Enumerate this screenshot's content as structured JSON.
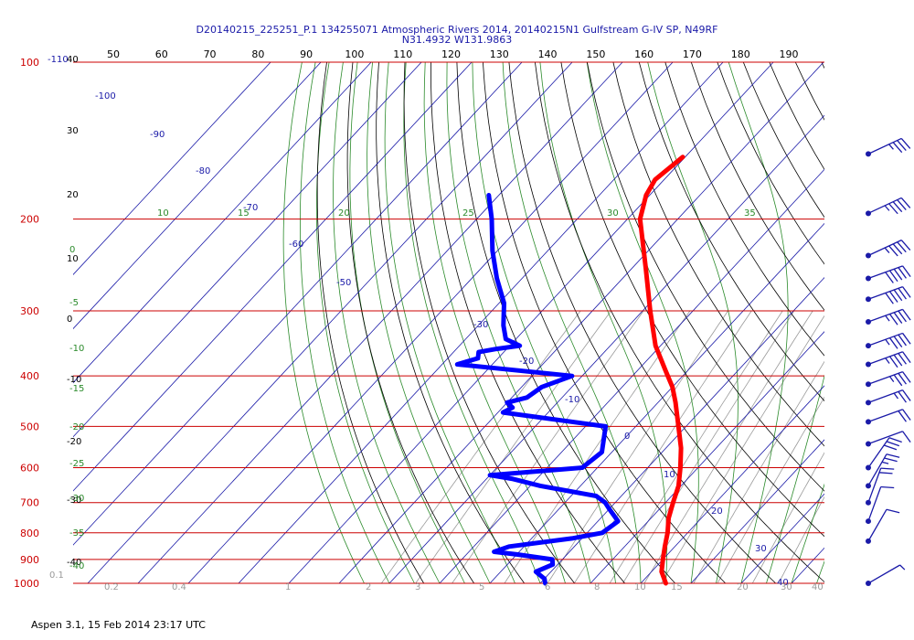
{
  "title_line1": "D20140215_225251_P.1 134255071 Atmospheric Rivers 2014, 20140215N1 Gulfstream G-IV SP, N49RF",
  "title_line2": "N31.4932 W131.9863",
  "footer": "Aspen 3.1, 15 Feb 2014  23:17 UTC",
  "colors": {
    "isobar": "#cc0000",
    "isotherm": "#1a1aa8",
    "dry_adiabat": "#000000",
    "moist_adiabat": "#2a8a2a",
    "mixing_ratio": "#9a9a9a",
    "temperature": "#ff0000",
    "dewpoint": "#0000ff",
    "wind_barb": "#1a1aa8"
  },
  "chart_data": {
    "type": "skew-t",
    "pressure_ticks": [
      "100",
      "200",
      "300",
      "400",
      "500",
      "600",
      "700",
      "800",
      "900",
      "1000"
    ],
    "theta_top_labels": [
      "50",
      "60",
      "70",
      "80",
      "90",
      "100",
      "110",
      "120",
      "130",
      "140",
      "150",
      "160",
      "170",
      "180",
      "190"
    ],
    "temp_left_labels": [
      "-110",
      "40",
      "30",
      "20",
      "10",
      "0",
      "-10",
      "-20",
      "-30",
      "-40"
    ],
    "isotherm_labels": [
      "-100",
      "-90",
      "-80",
      "-70",
      "-60",
      "-50",
      "-30",
      "-20",
      "-10",
      "0",
      "10",
      "20",
      "30",
      "40"
    ],
    "theta_e_labels": [
      "10",
      "15",
      "20",
      "25",
      "30",
      "35"
    ],
    "moist_left_labels": [
      "0",
      "-5",
      "-10",
      "-15",
      "-20",
      "-25",
      "-30",
      "-35",
      "-40"
    ],
    "mixing_ratio_labels": [
      "0.1",
      "0.2",
      "0.4",
      "1",
      "2",
      "3",
      "5",
      "6",
      "8",
      "10",
      "15",
      "20",
      "30",
      "40"
    ],
    "temperature": {
      "name": "Temperature",
      "p": [
        152,
        168,
        180,
        200,
        250,
        300,
        350,
        390,
        420,
        450,
        500,
        550,
        600,
        650,
        700,
        750,
        800,
        850,
        900,
        950,
        1000
      ],
      "t": [
        -60.5,
        -61.8,
        -60.7,
        -57.5,
        -47,
        -38.5,
        -31,
        -24.5,
        -20,
        -16.5,
        -11.5,
        -7,
        -3.5,
        -0.5,
        1.5,
        3.5,
        6,
        8,
        10,
        12,
        15
      ]
    },
    "dewpoint": {
      "name": "Dewpoint",
      "p": [
        180,
        200,
        230,
        260,
        290,
        320,
        340,
        350,
        355,
        360,
        370,
        380,
        400,
        420,
        440,
        450,
        460,
        470,
        500,
        560,
        600,
        620,
        630,
        650,
        680,
        700,
        720,
        760,
        800,
        820,
        850,
        870,
        880,
        900,
        920,
        950,
        980,
        1000
      ],
      "td": [
        -92,
        -87,
        -81,
        -75,
        -69,
        -65,
        -62,
        -58,
        -62,
        -65,
        -64,
        -67,
        -42,
        -46,
        -47,
        -50,
        -48,
        -49,
        -26,
        -22,
        -23,
        -40,
        -35,
        -28,
        -15,
        -12,
        -10,
        -6,
        -7,
        -12,
        -23,
        -25,
        -20,
        -12,
        -11,
        -13,
        -10,
        -9
      ]
    },
    "wind_barbs": [
      {
        "p": 150,
        "speed_kt": 35,
        "dir_deg": 245
      },
      {
        "p": 195,
        "speed_kt": 45,
        "dir_deg": 245
      },
      {
        "p": 235,
        "speed_kt": 45,
        "dir_deg": 245
      },
      {
        "p": 260,
        "speed_kt": 50,
        "dir_deg": 250
      },
      {
        "p": 285,
        "speed_kt": 50,
        "dir_deg": 250
      },
      {
        "p": 315,
        "speed_kt": 45,
        "dir_deg": 250
      },
      {
        "p": 350,
        "speed_kt": 45,
        "dir_deg": 250
      },
      {
        "p": 380,
        "speed_kt": 45,
        "dir_deg": 250
      },
      {
        "p": 415,
        "speed_kt": 35,
        "dir_deg": 250
      },
      {
        "p": 450,
        "speed_kt": 25,
        "dir_deg": 250
      },
      {
        "p": 490,
        "speed_kt": 20,
        "dir_deg": 250
      },
      {
        "p": 540,
        "speed_kt": 10,
        "dir_deg": 250
      },
      {
        "p": 600,
        "speed_kt": 30,
        "dir_deg": 215
      },
      {
        "p": 650,
        "speed_kt": 25,
        "dir_deg": 210
      },
      {
        "p": 700,
        "speed_kt": 20,
        "dir_deg": 200
      },
      {
        "p": 760,
        "speed_kt": 10,
        "dir_deg": 200
      },
      {
        "p": 830,
        "speed_kt": 10,
        "dir_deg": 210
      },
      {
        "p": 1000,
        "speed_kt": 5,
        "dir_deg": 240
      }
    ],
    "xlim_top_theta": [
      50,
      190
    ],
    "ylim_pressure": [
      100,
      1000
    ],
    "y_scale": "log-pressure",
    "grid": true
  }
}
